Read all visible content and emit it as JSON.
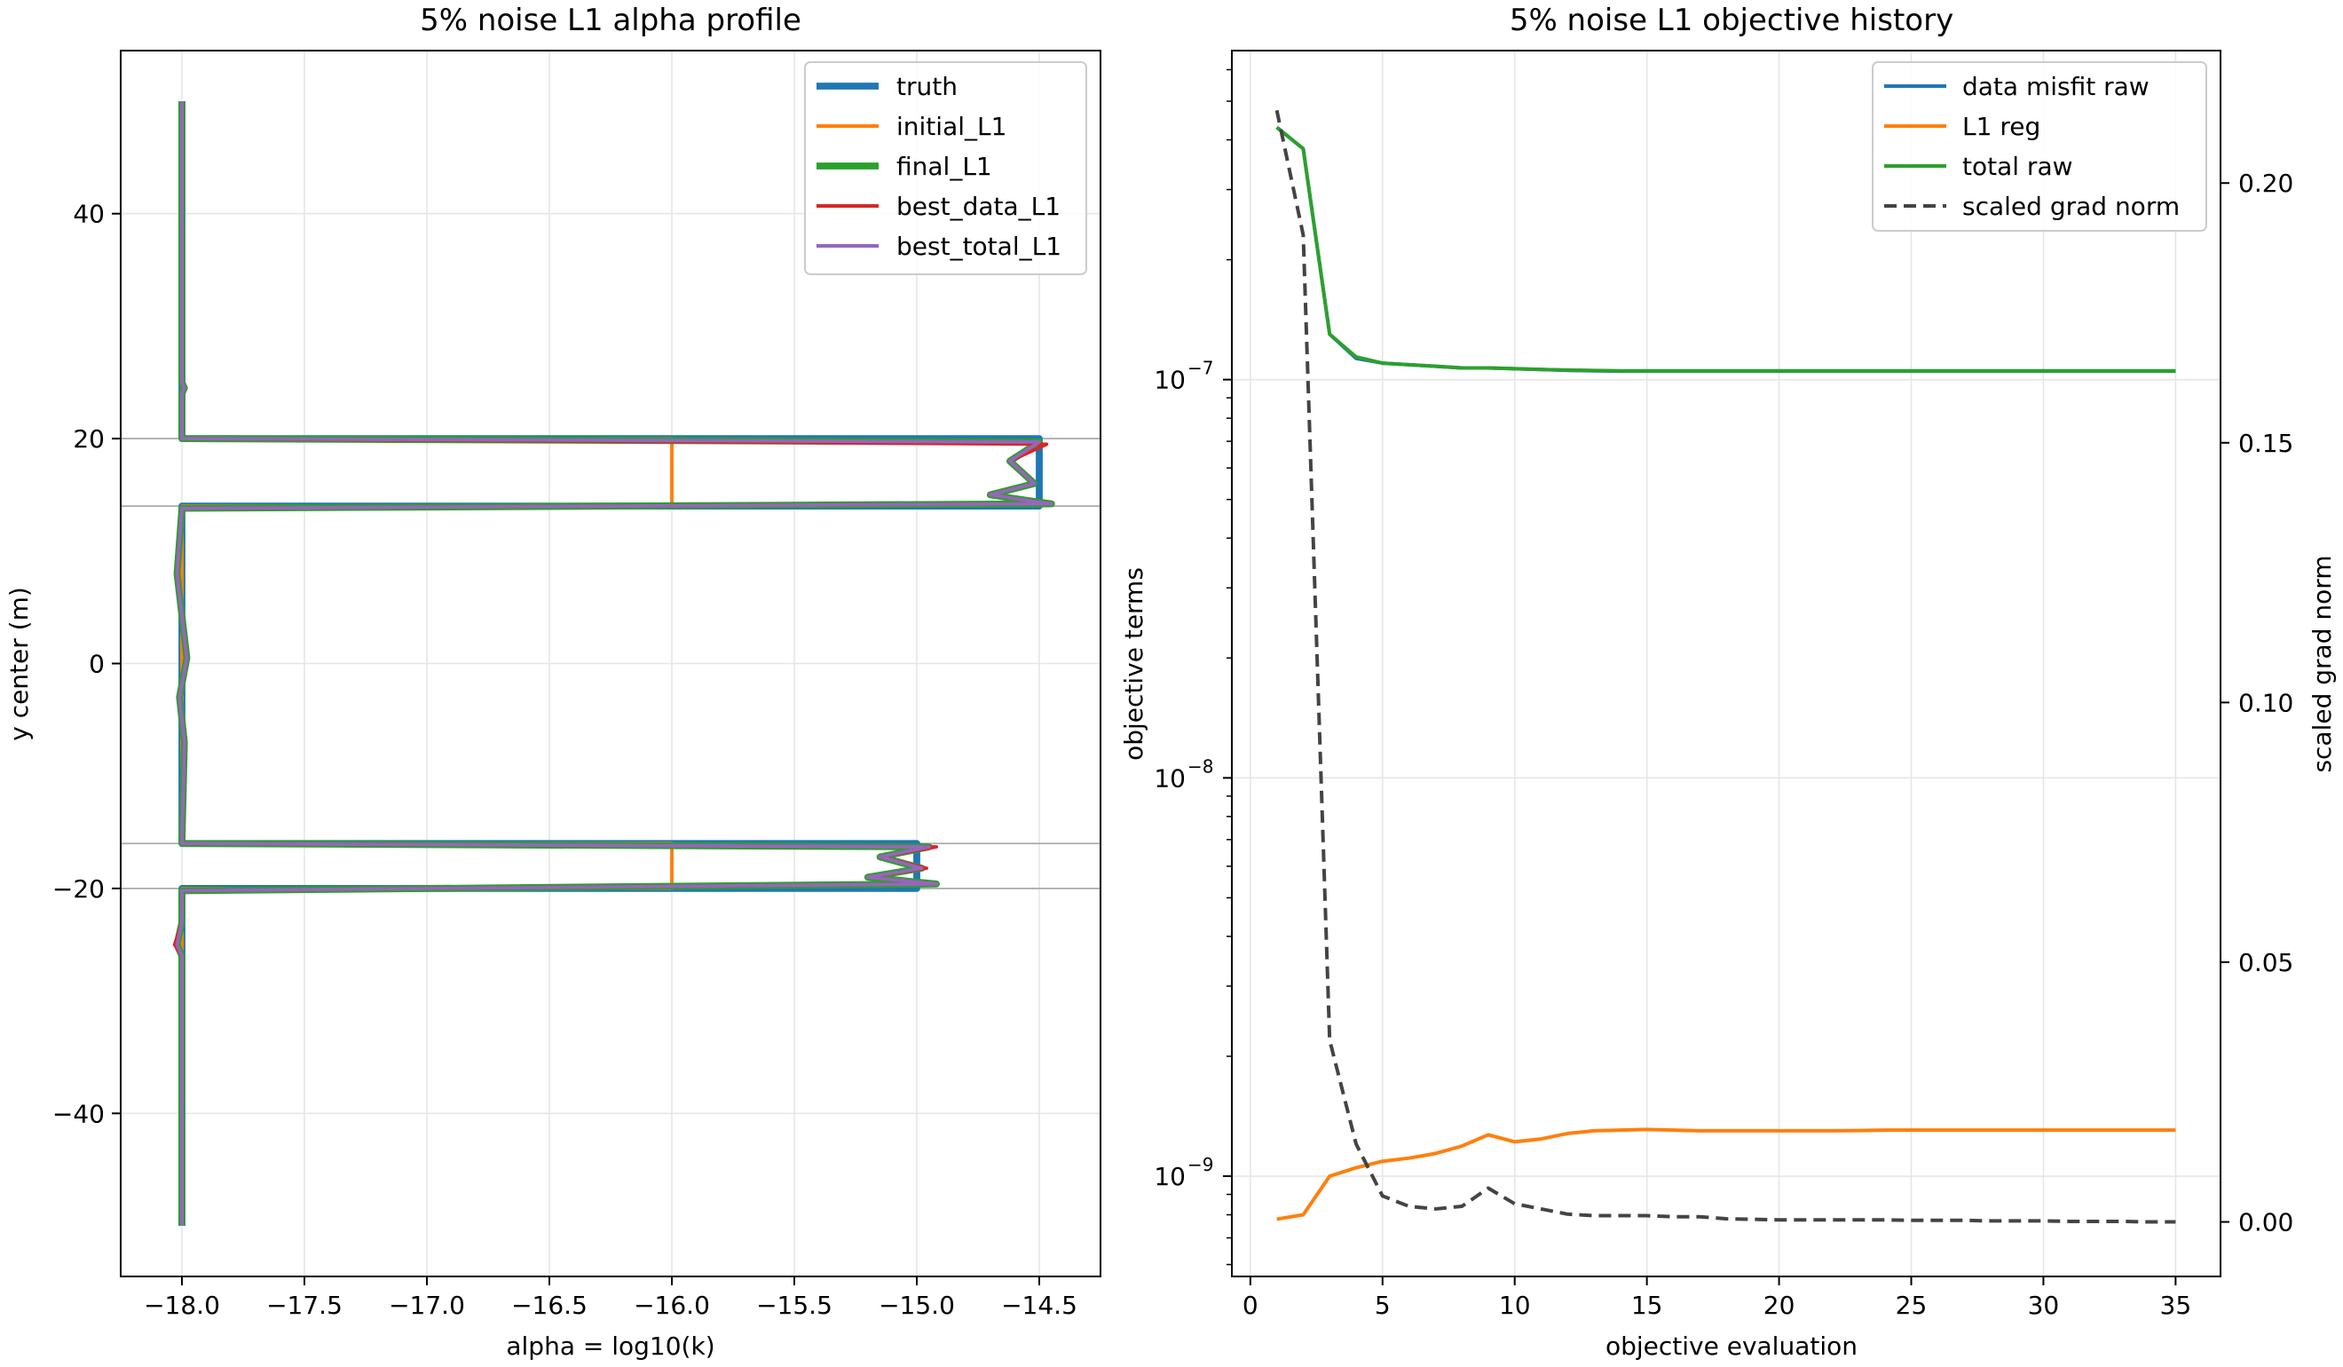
{
  "chart_data": [
    {
      "type": "line",
      "title": "5% noise L1 alpha profile",
      "xlabel": "alpha = log10(k)",
      "ylabel": "y center (m)",
      "xlim": [
        -18.25,
        -14.25
      ],
      "ylim": [
        -54.5,
        54.5
      ],
      "xticks": [
        -18.0,
        -17.5,
        -17.0,
        -16.5,
        -16.0,
        -15.5,
        -15.0,
        -14.5
      ],
      "xtick_labels": [
        "−18.0",
        "−17.5",
        "−17.0",
        "−16.5",
        "−16.0",
        "−15.5",
        "−15.0",
        "−14.5"
      ],
      "yticks": [
        -40,
        -20,
        0,
        20,
        40
      ],
      "ytick_labels": [
        "−40",
        "−20",
        "0",
        "20",
        "40"
      ],
      "grid": true,
      "legend_location": "upper right",
      "hlines": [
        20,
        14,
        -16,
        -20
      ],
      "series": [
        {
          "name": "truth",
          "color": "#1f77b4",
          "width": 3,
          "x": [
            -18.0,
            -18.0,
            -14.5,
            -14.5,
            -18.0,
            -18.0,
            -15.0,
            -15.0,
            -18.0,
            -18.0
          ],
          "y": [
            50,
            20,
            20,
            14,
            14,
            -16,
            -16,
            -20,
            -20,
            -50
          ]
        },
        {
          "name": "initial_L1",
          "color": "#ff7f0e",
          "width": 1.5,
          "x": [
            -18.0,
            -18.0,
            -16.0,
            -16.0,
            -18.0,
            -18.0,
            -16.0,
            -16.0,
            -18.0,
            -18.0
          ],
          "y": [
            50,
            20,
            20,
            14,
            14,
            -16,
            -16,
            -20,
            -20,
            -50
          ]
        },
        {
          "name": "final_L1",
          "color": "#2ca02c",
          "width": 3,
          "x": [
            -18.0,
            -18.0,
            -17.99,
            -18.0,
            -18.0,
            -14.5,
            -14.62,
            -14.52,
            -14.7,
            -14.55,
            -14.45,
            -18.0,
            -18.02,
            -17.98,
            -18.01,
            -17.99,
            -18.0,
            -14.95,
            -15.15,
            -14.98,
            -15.2,
            -14.92,
            -18.0,
            -18.0,
            -18.02,
            -18.0,
            -18.0
          ],
          "y": [
            50,
            25,
            24.5,
            24,
            20,
            19.7,
            18,
            16,
            15,
            14.5,
            14.2,
            13.8,
            8,
            0.5,
            -3,
            -7,
            -16,
            -16.3,
            -17.2,
            -18.2,
            -19,
            -19.6,
            -20.2,
            -23,
            -25,
            -26,
            -50
          ]
        },
        {
          "name": "best_data_L1",
          "color": "#d62728",
          "width": 1.5,
          "x": [
            -18.0,
            -18.0,
            -17.99,
            -18.0,
            -18.0,
            -14.47,
            -14.62,
            -14.52,
            -14.7,
            -14.55,
            -14.45,
            -18.0,
            -18.02,
            -17.98,
            -18.01,
            -17.99,
            -18.0,
            -14.92,
            -15.15,
            -14.96,
            -15.2,
            -14.92,
            -18.0,
            -18.0,
            -18.03,
            -18.0,
            -18.0
          ],
          "y": [
            50,
            25,
            24.5,
            24,
            20,
            19.5,
            18,
            16,
            15,
            14.5,
            14.2,
            13.8,
            8,
            0.5,
            -3,
            -7,
            -16,
            -16.3,
            -17.2,
            -18.2,
            -19,
            -19.6,
            -20.2,
            -23,
            -25,
            -26,
            -50
          ]
        },
        {
          "name": "best_total_L1",
          "color": "#9467bd",
          "width": 1.5,
          "x": [
            -18.0,
            -18.0,
            -17.99,
            -18.0,
            -18.0,
            -14.5,
            -14.62,
            -14.52,
            -14.7,
            -14.55,
            -14.45,
            -18.0,
            -18.02,
            -17.98,
            -18.01,
            -17.99,
            -18.0,
            -14.95,
            -15.15,
            -14.98,
            -15.2,
            -14.92,
            -18.0,
            -18.0,
            -18.02,
            -18.0,
            -18.0
          ],
          "y": [
            50,
            25,
            24.5,
            24,
            20,
            19.7,
            18,
            16,
            15,
            14.5,
            14.2,
            13.8,
            8,
            0.5,
            -3,
            -7,
            -16,
            -16.3,
            -17.2,
            -18.2,
            -19,
            -19.6,
            -20.2,
            -23,
            -25,
            -26,
            -50
          ]
        }
      ]
    },
    {
      "type": "line",
      "title": "5% noise L1 objective history",
      "xlabel": "objective evaluation",
      "ylabel": "objective terms",
      "y2label": "scaled grad norm",
      "y_scale": "log",
      "xlim": [
        -0.7,
        36.7
      ],
      "ylim": [
        5.6e-10,
        6.7e-07
      ],
      "y2lim": [
        -0.0105,
        0.2255
      ],
      "xticks": [
        0,
        5,
        10,
        15,
        20,
        25,
        30,
        35
      ],
      "xtick_labels": [
        "0",
        "5",
        "10",
        "15",
        "20",
        "25",
        "30",
        "35"
      ],
      "yticks": [
        1e-09,
        1e-08,
        1e-07
      ],
      "ytick_labels": [
        "10",
        "10",
        "10"
      ],
      "ytick_exponents": [
        "−9",
        "−8",
        "−7"
      ],
      "y2ticks": [
        0.0,
        0.05,
        0.1,
        0.15,
        0.2
      ],
      "y2tick_labels": [
        "0.00",
        "0.05",
        "0.10",
        "0.15",
        "0.20"
      ],
      "grid": true,
      "legend_location": "upper right",
      "x": [
        1,
        2,
        3,
        4,
        5,
        6,
        7,
        8,
        9,
        10,
        11,
        12,
        13,
        14,
        15,
        16,
        17,
        18,
        19,
        20,
        21,
        22,
        23,
        24,
        25,
        26,
        27,
        28,
        29,
        30,
        31,
        32,
        33,
        34,
        35
      ],
      "series": [
        {
          "name": "data misfit raw",
          "color": "#1f77b4",
          "axis": "left",
          "dash": "",
          "values": [
            4.3e-07,
            3.8e-07,
            1.3e-07,
            1.13e-07,
            1.1e-07,
            1.09e-07,
            1.08e-07,
            1.07e-07,
            1.07e-07,
            1.065e-07,
            1.06e-07,
            1.055e-07,
            1.052e-07,
            1.05e-07,
            1.05e-07,
            1.05e-07,
            1.05e-07,
            1.05e-07,
            1.05e-07,
            1.05e-07,
            1.05e-07,
            1.05e-07,
            1.05e-07,
            1.05e-07,
            1.05e-07,
            1.05e-07,
            1.05e-07,
            1.05e-07,
            1.05e-07,
            1.05e-07,
            1.05e-07,
            1.05e-07,
            1.05e-07,
            1.05e-07,
            1.05e-07
          ]
        },
        {
          "name": "L1 reg",
          "color": "#ff7f0e",
          "axis": "left",
          "dash": "",
          "values": [
            7.8e-10,
            8e-10,
            1e-09,
            1.05e-09,
            1.09e-09,
            1.11e-09,
            1.14e-09,
            1.19e-09,
            1.27e-09,
            1.22e-09,
            1.24e-09,
            1.28e-09,
            1.3e-09,
            1.305e-09,
            1.31e-09,
            1.305e-09,
            1.3e-09,
            1.3e-09,
            1.3e-09,
            1.3e-09,
            1.3e-09,
            1.3e-09,
            1.302e-09,
            1.305e-09,
            1.305e-09,
            1.305e-09,
            1.305e-09,
            1.305e-09,
            1.305e-09,
            1.305e-09,
            1.305e-09,
            1.305e-09,
            1.305e-09,
            1.305e-09,
            1.305e-09
          ]
        },
        {
          "name": "total raw",
          "color": "#2ca02c",
          "axis": "left",
          "dash": "",
          "values": [
            4.3e-07,
            3.8e-07,
            1.3e-07,
            1.14e-07,
            1.1e-07,
            1.09e-07,
            1.08e-07,
            1.07e-07,
            1.07e-07,
            1.065e-07,
            1.06e-07,
            1.057e-07,
            1.054e-07,
            1.052e-07,
            1.052e-07,
            1.052e-07,
            1.052e-07,
            1.052e-07,
            1.052e-07,
            1.052e-07,
            1.052e-07,
            1.052e-07,
            1.052e-07,
            1.052e-07,
            1.052e-07,
            1.052e-07,
            1.052e-07,
            1.052e-07,
            1.052e-07,
            1.052e-07,
            1.052e-07,
            1.052e-07,
            1.052e-07,
            1.052e-07,
            1.052e-07
          ]
        },
        {
          "name": "scaled grad norm",
          "color": "#444444",
          "axis": "right",
          "dash": "14,8",
          "values": [
            0.214,
            0.19,
            0.035,
            0.015,
            0.005,
            0.003,
            0.0025,
            0.003,
            0.0065,
            0.0035,
            0.0025,
            0.0015,
            0.0012,
            0.0012,
            0.0012,
            0.001,
            0.001,
            0.0006,
            0.0005,
            0.0004,
            0.0004,
            0.0004,
            0.0004,
            0.0004,
            0.0003,
            0.0003,
            0.0003,
            0.0002,
            0.0002,
            0.0002,
            0.0001,
            0.0001,
            0.0001,
            0.0,
            0.0
          ]
        }
      ]
    }
  ]
}
